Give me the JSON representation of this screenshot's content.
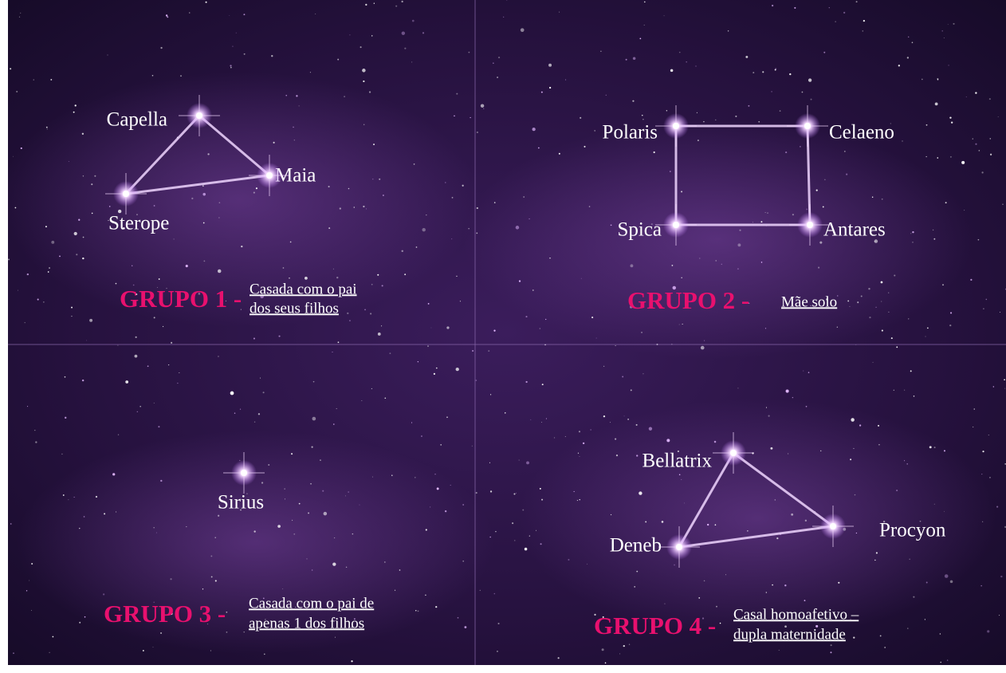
{
  "panels": [
    {
      "group": "GRUPO 1 -",
      "description": [
        "Casada com o pai",
        "dos seus filhos"
      ],
      "stars": [
        "Capella",
        "Maia",
        "Sterope"
      ]
    },
    {
      "group": "GRUPO 2 -",
      "description": [
        "Mãe solo"
      ],
      "stars": [
        "Polaris",
        "Celaeno",
        "Spica",
        "Antares"
      ]
    },
    {
      "group": "GRUPO 3 -",
      "description": [
        "Casada com o pai de",
        "apenas 1 dos filhos"
      ],
      "stars": [
        "Sirius"
      ]
    },
    {
      "group": "GRUPO 4 -",
      "description": [
        "Casal homoafetivo –",
        "dupla maternidade"
      ],
      "stars": [
        "Bellatrix",
        "Procyon",
        "Deneb"
      ]
    }
  ]
}
